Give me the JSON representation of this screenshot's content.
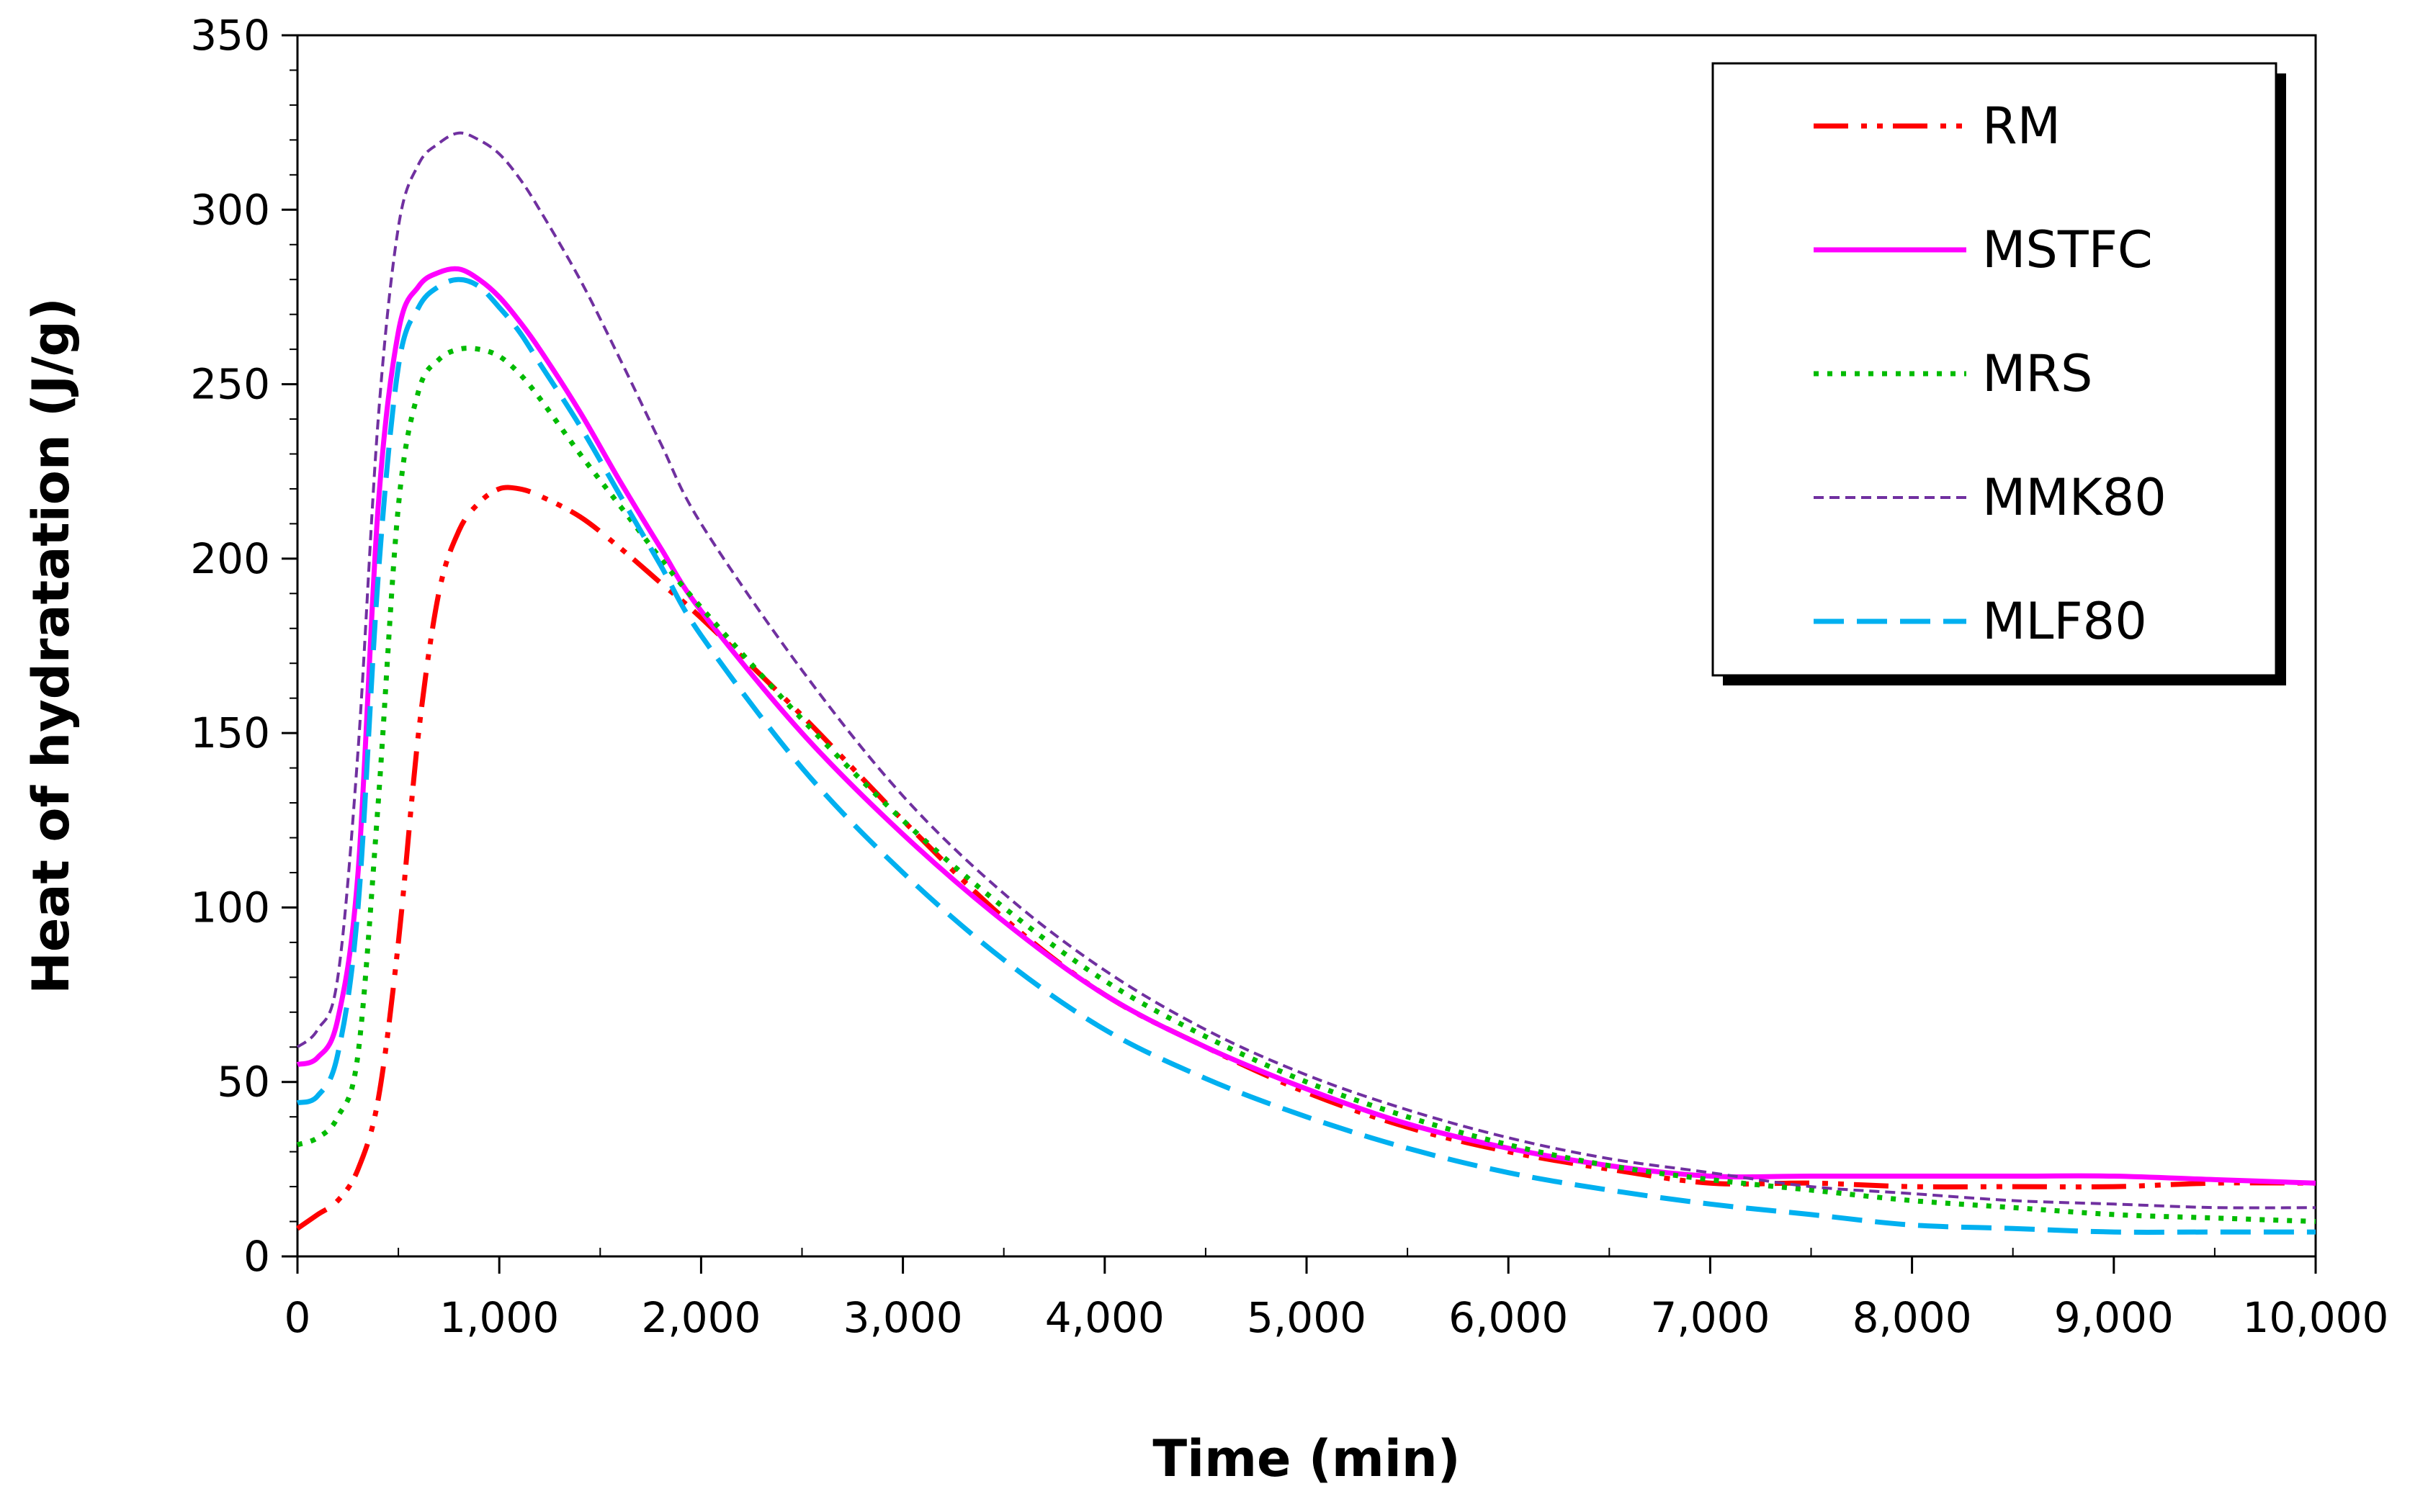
{
  "chart_data": {
    "type": "line",
    "title": "",
    "xlabel": "Time (min)",
    "ylabel": "Heat of hydratation (J/g)",
    "xlim": [
      0,
      10000
    ],
    "ylim": [
      0,
      350
    ],
    "x_ticks": [
      0,
      1000,
      2000,
      3000,
      4000,
      5000,
      6000,
      7000,
      8000,
      9000,
      10000
    ],
    "x_tick_labels": [
      "0",
      "1,000",
      "2,000",
      "3,000",
      "4,000",
      "5,000",
      "6,000",
      "7,000",
      "8,000",
      "9,000",
      "10,000"
    ],
    "y_ticks": [
      0,
      50,
      100,
      150,
      200,
      250,
      300,
      350
    ],
    "y_tick_labels": [
      "0",
      "50",
      "100",
      "150",
      "200",
      "250",
      "300",
      "350"
    ],
    "grid": false,
    "legend_position": "top-right",
    "x": [
      0,
      100,
      200,
      300,
      400,
      500,
      600,
      700,
      800,
      900,
      1000,
      1100,
      1200,
      1400,
      1600,
      1800,
      2000,
      2500,
      3000,
      3500,
      4000,
      4500,
      5000,
      5500,
      6000,
      6500,
      7000,
      7500,
      8000,
      8500,
      9000,
      9500,
      10000
    ],
    "series": [
      {
        "name": "RM",
        "color": "#ff0000",
        "dash": "48 18 8 14 8 14",
        "values": [
          8,
          12,
          16,
          25,
          45,
          90,
          150,
          190,
          208,
          216,
          220,
          220,
          218,
          212,
          203,
          193,
          183,
          155,
          125,
          97,
          75,
          60,
          47,
          37,
          30,
          25,
          21,
          21,
          20,
          20,
          20,
          21,
          21
        ]
      },
      {
        "name": "MSTFC",
        "color": "#ff00ff",
        "dash": "",
        "values": [
          55,
          57,
          68,
          110,
          215,
          265,
          278,
          282,
          283,
          280,
          275,
          268,
          260,
          242,
          222,
          203,
          185,
          150,
          121,
          96,
          75,
          60,
          48,
          38,
          31,
          26,
          23,
          23,
          23,
          23,
          23,
          22,
          21
        ]
      },
      {
        "name": "MRS",
        "color": "#00bb00",
        "dash": "7 12",
        "values": [
          32,
          34,
          40,
          58,
          130,
          215,
          248,
          257,
          260,
          260,
          258,
          253,
          246,
          230,
          215,
          200,
          186,
          154,
          125,
          100,
          79,
          63,
          50,
          40,
          32,
          26,
          22,
          19,
          16,
          14,
          12,
          11,
          10
        ]
      },
      {
        "name": "MMK80",
        "color": "#7030a0",
        "dash": "14 8",
        "values": [
          60,
          65,
          80,
          145,
          240,
          295,
          313,
          319,
          322,
          320,
          316,
          309,
          300,
          280,
          257,
          233,
          210,
          168,
          132,
          104,
          82,
          65,
          52,
          42,
          34,
          28,
          24,
          20,
          18,
          16,
          15,
          14,
          14
        ]
      },
      {
        "name": "MLF80",
        "color": "#00b0f0",
        "dash": "42 18",
        "values": [
          44,
          46,
          58,
          100,
          195,
          255,
          272,
          278,
          280,
          278,
          272,
          265,
          256,
          238,
          218,
          198,
          178,
          140,
          110,
          85,
          65,
          51,
          40,
          31,
          24,
          19,
          15,
          12,
          9,
          8,
          7,
          7,
          7
        ]
      }
    ]
  }
}
